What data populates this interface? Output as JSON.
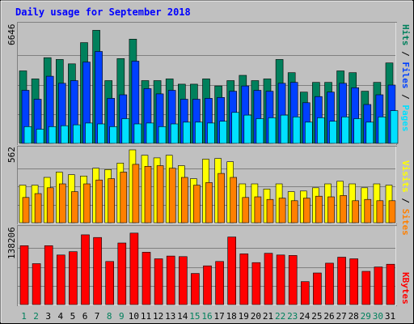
{
  "chart_data": {
    "type": "bar",
    "title": "Daily usage for September 2018",
    "categories": [
      "1",
      "2",
      "3",
      "4",
      "5",
      "6",
      "7",
      "8",
      "9",
      "10",
      "11",
      "12",
      "13",
      "14",
      "15",
      "16",
      "17",
      "18",
      "19",
      "20",
      "21",
      "22",
      "23",
      "24",
      "25",
      "26",
      "27",
      "28",
      "29",
      "30",
      "31"
    ],
    "weekend_days": [
      "1",
      "2",
      "8",
      "9",
      "15",
      "16",
      "22",
      "23",
      "29",
      "30"
    ],
    "panels": [
      {
        "id": "hits-files-pages",
        "ymax_label": "6646",
        "ylim": [
          0,
          6646
        ],
        "legend": [
          "Pages",
          "Files",
          "Hits"
        ],
        "series": [
          {
            "name": "Hits",
            "color": "#00805c",
            "values": [
              4100,
              3650,
              4850,
              4750,
              4500,
              5700,
              6400,
              3550,
              4800,
              5900,
              3550,
              3550,
              3650,
              3350,
              3350,
              3650,
              3250,
              3550,
              3850,
              3550,
              3650,
              4750,
              4000,
              2900,
              3450,
              3450,
              4100,
              4000,
              2950,
              3450,
              4550
            ]
          },
          {
            "name": "Files",
            "color": "#0040ff",
            "values": [
              3000,
              2500,
              3800,
              3400,
              3550,
              4600,
              5200,
              2550,
              2750,
              4650,
              3100,
              2800,
              3000,
              2500,
              2500,
              2550,
              2600,
              2950,
              3250,
              3000,
              2950,
              3400,
              3450,
              2300,
              2650,
              2900,
              3400,
              3150,
              2200,
              2750,
              3300
            ]
          },
          {
            "name": "Pages",
            "color": "#00e0ff",
            "values": [
              950,
              800,
              950,
              1000,
              1050,
              1150,
              1100,
              950,
              1400,
              1100,
              1150,
              950,
              1100,
              1200,
              1200,
              1150,
              1250,
              1750,
              1600,
              1400,
              1450,
              1600,
              1500,
              1200,
              1450,
              1250,
              1500,
              1400,
              1200,
              1500,
              1850
            ]
          }
        ]
      },
      {
        "id": "visits-sites",
        "ymax_label": "562",
        "ylim": [
          0,
          562
        ],
        "legend": [
          "Sites",
          "Visits"
        ],
        "series": [
          {
            "name": "Visits",
            "color": "#ffff00",
            "values": [
              290,
              290,
              350,
              390,
              370,
              360,
              420,
              410,
              460,
              562,
              520,
              500,
              520,
              440,
              340,
              490,
              495,
              470,
              300,
              300,
              260,
              300,
              240,
              245,
              270,
              300,
              320,
              300,
              270,
              300,
              290
            ]
          },
          {
            "name": "Sites",
            "color": "#ff8000",
            "values": [
              195,
              225,
              270,
              300,
              240,
              300,
              330,
              340,
              390,
              450,
              435,
              440,
              420,
              350,
              290,
              310,
              380,
              350,
              195,
              200,
              180,
              190,
              170,
              190,
              205,
              200,
              210,
              170,
              180,
              170,
              170
            ]
          }
        ]
      },
      {
        "id": "kbytes",
        "ymax_label": "138206",
        "ylim": [
          0,
          138206
        ],
        "legend": [
          "KBytes"
        ],
        "series": [
          {
            "name": "KBytes",
            "color": "#ff0000",
            "values": [
              108000,
              75000,
              108000,
              91000,
              97000,
              128000,
              123000,
              79000,
              113000,
              131000,
              96000,
              84000,
              89000,
              88000,
              57000,
              71000,
              79000,
              124000,
              93000,
              77000,
              94000,
              91000,
              90000,
              42000,
              58000,
              76000,
              87000,
              84000,
              61000,
              69000,
              74000
            ]
          }
        ]
      }
    ]
  },
  "colors": {
    "title": "#0000ff",
    "hits": "#00805c",
    "files": "#0040ff",
    "pages": "#00e0ff",
    "visits": "#ffff00",
    "sites": "#ff8000",
    "kbytes": "#ff0000",
    "weekday_label": "#000000",
    "weekend_label": "#00805c"
  }
}
